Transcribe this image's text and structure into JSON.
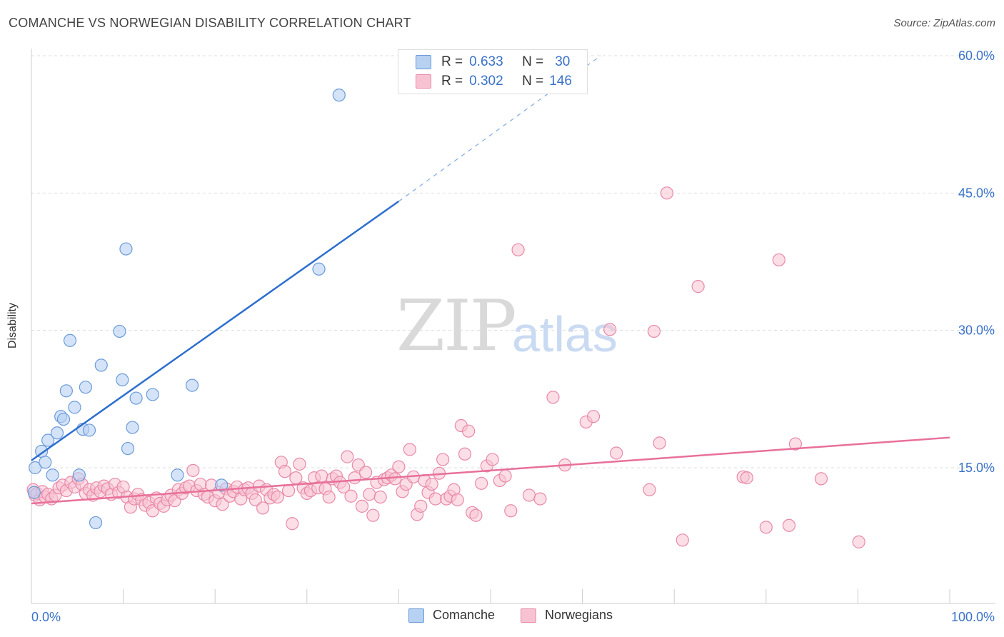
{
  "title": "COMANCHE VS NORWEGIAN DISABILITY CORRELATION CHART",
  "source": "Source: ZipAtlas.com",
  "watermark": {
    "zip": "ZIP",
    "atlas": "atlas"
  },
  "colors": {
    "comanche_fill": "#b7d1f3",
    "comanche_stroke": "#6a9bd8",
    "comanche_line": "#2d6fce",
    "norwegian_fill": "#f7c3d2",
    "norwegian_stroke": "#e889a8",
    "norwegian_line": "#e8709a",
    "tick_label": "#3a72c9",
    "grid": "#dddddd"
  },
  "legend": {
    "rows": [
      {
        "r_label": "R =",
        "r_value": "0.633",
        "n_label": "N =",
        "n_value": "30"
      },
      {
        "r_label": "R =",
        "r_value": "0.302",
        "n_label": "N =",
        "n_value": "146"
      }
    ],
    "bottom": [
      "Comanche",
      "Norwegians"
    ]
  },
  "chart_data": {
    "type": "scatter",
    "title": "COMANCHE VS NORWEGIAN DISABILITY CORRELATION CHART",
    "xlabel": "",
    "ylabel": "Disability",
    "xlim": [
      0,
      100
    ],
    "ylim": [
      0,
      63
    ],
    "x_tick_labels": [
      "0.0%",
      "100.0%"
    ],
    "y_ticks": [
      15,
      30,
      45,
      60
    ],
    "y_tick_labels": [
      "15.0%",
      "30.0%",
      "45.0%",
      "60.0%"
    ],
    "grid": true,
    "series": [
      {
        "name": "Comanche",
        "r": 0.633,
        "n": 30,
        "trend": {
          "x0": 0,
          "y0": 15.8,
          "x1": 40,
          "y1": 44.1,
          "dashed_to_x": 62,
          "dashed_to_y": 60.0
        },
        "points": [
          [
            0.3,
            12.3
          ],
          [
            0.4,
            15.0
          ],
          [
            1.1,
            16.8
          ],
          [
            1.5,
            15.6
          ],
          [
            1.8,
            18.0
          ],
          [
            2.3,
            14.2
          ],
          [
            2.8,
            18.8
          ],
          [
            3.2,
            20.6
          ],
          [
            3.5,
            20.3
          ],
          [
            3.8,
            23.4
          ],
          [
            4.2,
            28.9
          ],
          [
            4.7,
            21.6
          ],
          [
            5.2,
            14.2
          ],
          [
            5.6,
            19.2
          ],
          [
            5.9,
            23.8
          ],
          [
            6.3,
            19.1
          ],
          [
            7.0,
            9.0
          ],
          [
            7.6,
            26.2
          ],
          [
            9.6,
            29.9
          ],
          [
            9.9,
            24.6
          ],
          [
            10.3,
            38.9
          ],
          [
            10.5,
            17.1
          ],
          [
            11.0,
            19.4
          ],
          [
            11.4,
            22.6
          ],
          [
            13.2,
            23.0
          ],
          [
            15.9,
            14.2
          ],
          [
            17.5,
            24.0
          ],
          [
            20.7,
            13.1
          ],
          [
            31.3,
            36.7
          ],
          [
            33.5,
            55.7
          ]
        ]
      },
      {
        "name": "Norwegians",
        "r": 0.302,
        "n": 146,
        "trend": {
          "x0": 0,
          "y0": 11.1,
          "x1": 100,
          "y1": 18.3
        },
        "points": [
          [
            0.2,
            12.6
          ],
          [
            0.4,
            12.0
          ],
          [
            0.6,
            12.2
          ],
          [
            0.9,
            11.5
          ],
          [
            1.2,
            12.4
          ],
          [
            1.5,
            11.8
          ],
          [
            1.8,
            12.1
          ],
          [
            2.2,
            11.6
          ],
          [
            2.6,
            12.0
          ],
          [
            3.0,
            12.8
          ],
          [
            3.4,
            13.1
          ],
          [
            3.8,
            12.5
          ],
          [
            4.3,
            13.4
          ],
          [
            4.7,
            12.9
          ],
          [
            5.1,
            13.8
          ],
          [
            5.5,
            13.2
          ],
          [
            5.9,
            12.2
          ],
          [
            6.3,
            12.6
          ],
          [
            6.7,
            12.0
          ],
          [
            7.1,
            12.8
          ],
          [
            7.5,
            12.4
          ],
          [
            7.9,
            13.0
          ],
          [
            8.3,
            12.7
          ],
          [
            8.7,
            12.1
          ],
          [
            9.1,
            13.2
          ],
          [
            9.5,
            12.3
          ],
          [
            10.0,
            12.9
          ],
          [
            10.4,
            11.8
          ],
          [
            10.8,
            10.7
          ],
          [
            11.2,
            11.6
          ],
          [
            11.6,
            12.1
          ],
          [
            12.0,
            11.5
          ],
          [
            12.4,
            10.9
          ],
          [
            12.8,
            11.2
          ],
          [
            13.2,
            10.3
          ],
          [
            13.6,
            11.7
          ],
          [
            14.0,
            11.1
          ],
          [
            14.4,
            10.8
          ],
          [
            14.8,
            11.5
          ],
          [
            15.2,
            12.0
          ],
          [
            15.6,
            11.4
          ],
          [
            16.0,
            12.6
          ],
          [
            16.4,
            12.2
          ],
          [
            16.8,
            12.8
          ],
          [
            17.2,
            13.0
          ],
          [
            17.6,
            14.7
          ],
          [
            18.0,
            12.5
          ],
          [
            18.4,
            13.2
          ],
          [
            18.8,
            12.1
          ],
          [
            19.2,
            11.8
          ],
          [
            19.6,
            13.1
          ],
          [
            20.0,
            11.4
          ],
          [
            20.4,
            12.3
          ],
          [
            20.8,
            11.0
          ],
          [
            21.2,
            12.7
          ],
          [
            21.6,
            11.9
          ],
          [
            22.0,
            12.4
          ],
          [
            22.4,
            12.9
          ],
          [
            22.8,
            11.6
          ],
          [
            23.2,
            12.6
          ],
          [
            23.6,
            12.8
          ],
          [
            24.0,
            12.2
          ],
          [
            24.4,
            11.5
          ],
          [
            24.8,
            13.0
          ],
          [
            25.2,
            10.6
          ],
          [
            25.6,
            12.6
          ],
          [
            26.0,
            11.7
          ],
          [
            26.4,
            12.1
          ],
          [
            26.8,
            11.8
          ],
          [
            27.2,
            15.6
          ],
          [
            27.6,
            14.6
          ],
          [
            28.0,
            12.5
          ],
          [
            28.4,
            8.9
          ],
          [
            28.8,
            13.9
          ],
          [
            29.2,
            15.4
          ],
          [
            29.6,
            12.8
          ],
          [
            30.0,
            12.2
          ],
          [
            30.4,
            12.5
          ],
          [
            30.8,
            13.9
          ],
          [
            31.2,
            12.8
          ],
          [
            31.6,
            14.1
          ],
          [
            32.0,
            12.7
          ],
          [
            32.4,
            11.8
          ],
          [
            32.8,
            13.8
          ],
          [
            33.2,
            14.1
          ],
          [
            33.6,
            13.4
          ],
          [
            34.0,
            12.9
          ],
          [
            34.4,
            16.2
          ],
          [
            34.8,
            11.9
          ],
          [
            35.2,
            13.9
          ],
          [
            35.6,
            15.3
          ],
          [
            36.0,
            10.8
          ],
          [
            36.4,
            14.5
          ],
          [
            36.8,
            12.1
          ],
          [
            37.2,
            9.8
          ],
          [
            37.6,
            13.4
          ],
          [
            38.0,
            11.8
          ],
          [
            38.4,
            13.7
          ],
          [
            38.8,
            13.9
          ],
          [
            39.2,
            14.2
          ],
          [
            39.6,
            13.8
          ],
          [
            40.0,
            15.1
          ],
          [
            40.4,
            12.4
          ],
          [
            40.8,
            13.2
          ],
          [
            41.2,
            17.0
          ],
          [
            41.6,
            14.0
          ],
          [
            42.0,
            9.9
          ],
          [
            42.4,
            10.8
          ],
          [
            42.8,
            13.6
          ],
          [
            43.2,
            12.3
          ],
          [
            43.6,
            13.2
          ],
          [
            44.0,
            11.6
          ],
          [
            44.4,
            14.4
          ],
          [
            44.8,
            15.9
          ],
          [
            45.2,
            11.6
          ],
          [
            45.6,
            11.9
          ],
          [
            46.0,
            12.6
          ],
          [
            46.4,
            11.5
          ],
          [
            46.8,
            19.6
          ],
          [
            47.2,
            16.5
          ],
          [
            47.6,
            19.0
          ],
          [
            48.0,
            10.1
          ],
          [
            48.4,
            9.8
          ],
          [
            49.0,
            13.3
          ],
          [
            49.6,
            15.2
          ],
          [
            50.2,
            15.9
          ],
          [
            51.0,
            13.6
          ],
          [
            51.6,
            14.1
          ],
          [
            52.2,
            10.3
          ],
          [
            53.0,
            38.8
          ],
          [
            54.2,
            12.0
          ],
          [
            55.4,
            11.6
          ],
          [
            56.8,
            22.7
          ],
          [
            58.1,
            15.3
          ],
          [
            60.4,
            20.0
          ],
          [
            61.2,
            20.6
          ],
          [
            63.0,
            30.1
          ],
          [
            63.7,
            16.6
          ],
          [
            67.3,
            12.6
          ],
          [
            67.8,
            29.9
          ],
          [
            68.4,
            17.7
          ],
          [
            69.2,
            45.0
          ],
          [
            70.9,
            7.1
          ],
          [
            72.6,
            34.8
          ],
          [
            77.5,
            14.0
          ],
          [
            77.9,
            13.9
          ],
          [
            80.0,
            8.5
          ],
          [
            81.4,
            37.7
          ],
          [
            82.5,
            8.7
          ],
          [
            83.2,
            17.6
          ],
          [
            86.0,
            13.8
          ],
          [
            90.1,
            6.9
          ]
        ]
      }
    ]
  }
}
